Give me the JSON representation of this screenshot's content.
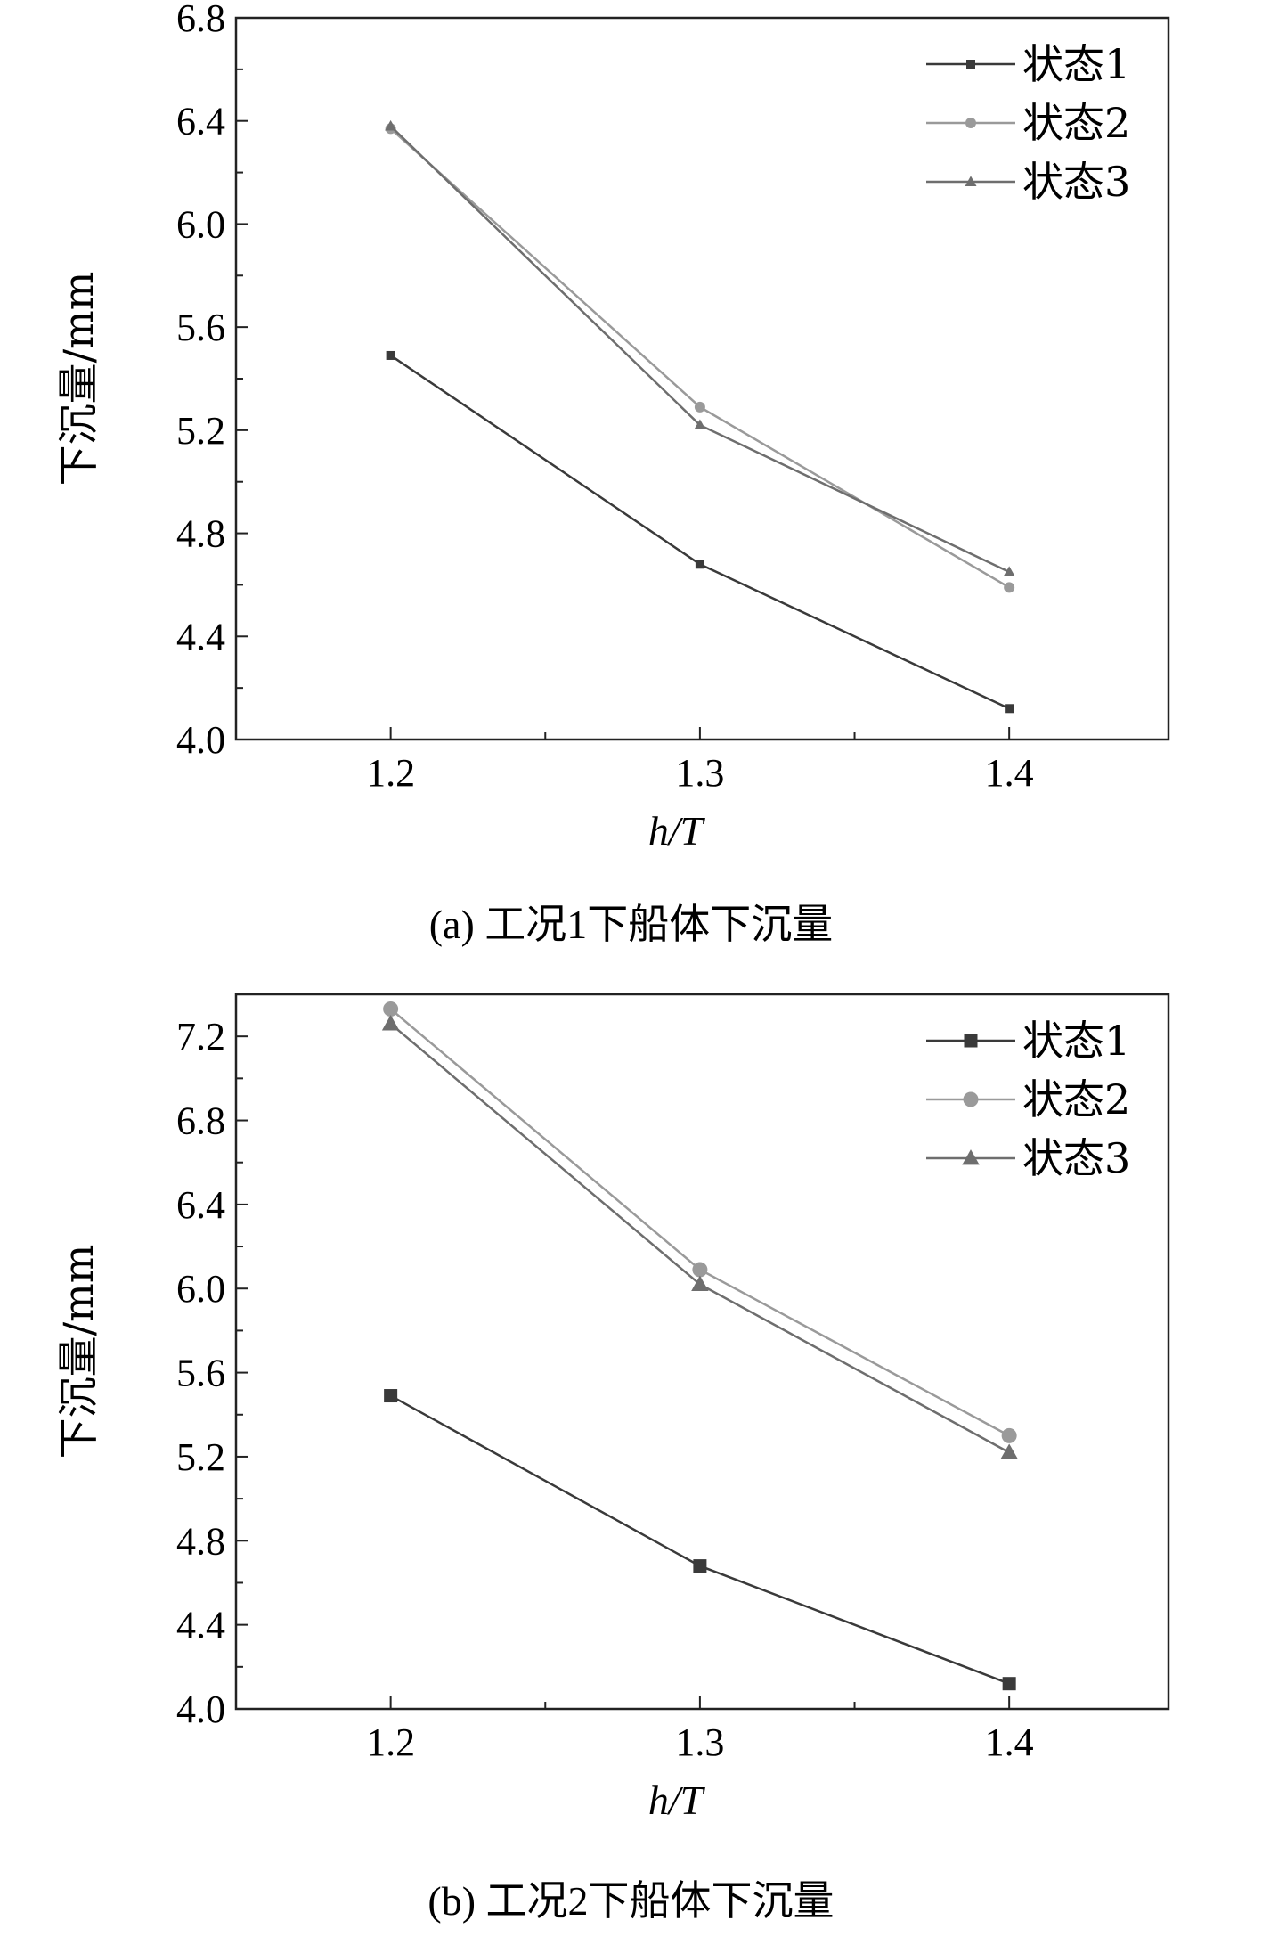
{
  "chart_data": [
    {
      "type": "line",
      "caption": "(a) 工况1下船体下沉量",
      "xlabel": "h/T",
      "ylabel": "下沉量/mm",
      "x": [
        1.2,
        1.3,
        1.4
      ],
      "x_ticks": [
        "1.2",
        "1.3",
        "1.4"
      ],
      "xlim": [
        1.15,
        1.4515
      ],
      "ylim": [
        4.0,
        6.8
      ],
      "y_ticks": [
        "4.0",
        "4.4",
        "4.8",
        "5.2",
        "5.6",
        "6.0",
        "6.4",
        "6.8"
      ],
      "legend_position": "top-right",
      "series": [
        {
          "name": "状态1",
          "values": [
            5.49,
            4.68,
            4.12
          ],
          "color": "#3a3a3a",
          "marker": "square"
        },
        {
          "name": "状态2",
          "values": [
            6.37,
            5.29,
            4.59
          ],
          "color": "#9a9a9a",
          "marker": "circle"
        },
        {
          "name": "状态3",
          "values": [
            6.38,
            5.22,
            4.65
          ],
          "color": "#6e6e6e",
          "marker": "triangle"
        }
      ]
    },
    {
      "type": "line",
      "caption": "(b) 工况2下船体下沉量",
      "xlabel": "h/T",
      "ylabel": "下沉量/mm",
      "x": [
        1.2,
        1.3,
        1.4
      ],
      "x_ticks": [
        "1.2",
        "1.3",
        "1.4"
      ],
      "xlim": [
        1.15,
        1.4515
      ],
      "ylim": [
        4.0,
        7.4
      ],
      "y_ticks": [
        "4.0",
        "4.4",
        "4.8",
        "5.2",
        "5.6",
        "6.0",
        "6.4",
        "6.8",
        "7.2"
      ],
      "legend_position": "top-right",
      "series": [
        {
          "name": "状态1",
          "values": [
            5.49,
            4.68,
            4.12
          ],
          "color": "#3a3a3a",
          "marker": "square"
        },
        {
          "name": "状态2",
          "values": [
            7.33,
            6.09,
            5.3
          ],
          "color": "#9a9a9a",
          "marker": "circle"
        },
        {
          "name": "状态3",
          "values": [
            7.26,
            6.02,
            5.22
          ],
          "color": "#6e6e6e",
          "marker": "triangle"
        }
      ]
    }
  ]
}
